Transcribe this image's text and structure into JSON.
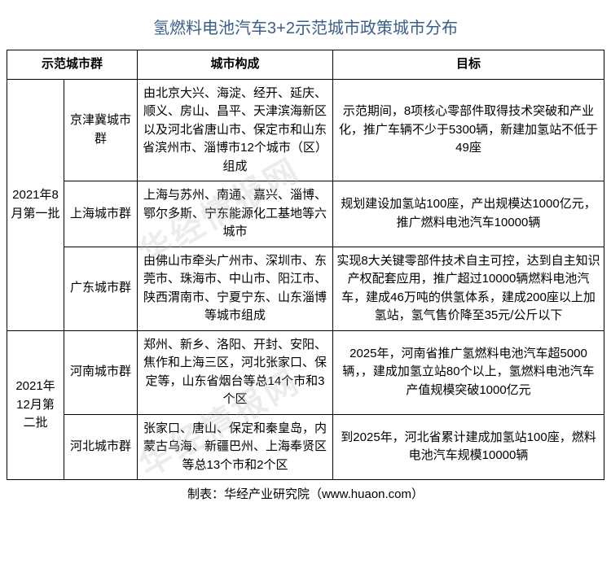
{
  "title": "氢燃料电池汽车3+2示范城市政策城市分布",
  "headers": {
    "col0_label": "",
    "col1": "示范城市群",
    "col2": "城市构成",
    "col3": "目标"
  },
  "batches": [
    {
      "batch_label": "2021年8月第一批",
      "rows": [
        {
          "group": "京津冀城市群",
          "composition": "由北京大兴、海淀、经开、延庆、顺义、房山、昌平、天津滨海新区以及河北省唐山市、保定市和山东省滨州市、淄博市12个城市（区）组成",
          "target": "示范期间，8项核心零部件取得技术突破和产业化，推广车辆不少于5300辆，新建加氢站不低于49座"
        },
        {
          "group": "上海城市群",
          "composition": "上海与苏州、南通、嘉兴、淄博、鄂尔多斯、宁东能源化工基地等六城市",
          "target": "规划建设加氢站100座，产出规模达1000亿元，推广燃料电池汽车10000辆"
        },
        {
          "group": "广东城市群",
          "composition": "由佛山市牵头广州市、深圳市、东莞市、珠海市、中山市、阳江市、陕西渭南市、宁夏宁东、山东淄博等城市组成",
          "target": "实现8大关键零部件技术自主可控，达到自主知识产权配套应用，推广超过10000辆燃料电池汽车，建成46万吨的供氢体系，建成200座以上加氢站，氢气售价降至35元/公斤以下"
        }
      ]
    },
    {
      "batch_label": "2021年12月第二批",
      "rows": [
        {
          "group": "河南城市群",
          "composition": "郑州、新乡、洛阳、开封、安阳、焦作和上海三区，河北张家口、保定等，山东省烟台等总14个市和3个区",
          "target": "2025年，河南省推广氢燃料电池汽车超5000辆，，建成加氢立站80个以上，氢燃料电池汽车产值规模突破1000亿元"
        },
        {
          "group": "河北城市群",
          "composition": "张家口、唐山、保定和秦皇岛，内蒙古乌海、新疆巴州、上海奉贤区等总13个市和2个区",
          "target": "到2025年，河北省累计建成加氢站100座，燃料电池汽车规模10000辆"
        }
      ]
    }
  ],
  "footer": "制表：华经产业研究院（www.huaon.com）",
  "watermark": "华经情报网",
  "colors": {
    "title_color": "#3a5f8a",
    "border_color": "#000000",
    "text_color": "#000000",
    "bg_color": "#ffffff",
    "watermark_color": "rgba(180,180,180,0.25)"
  },
  "column_widths": {
    "batch": 70,
    "group": 90,
    "composition": 240
  },
  "font_sizes": {
    "title": 20,
    "cell": 15,
    "footer": 15,
    "watermark": 40
  }
}
